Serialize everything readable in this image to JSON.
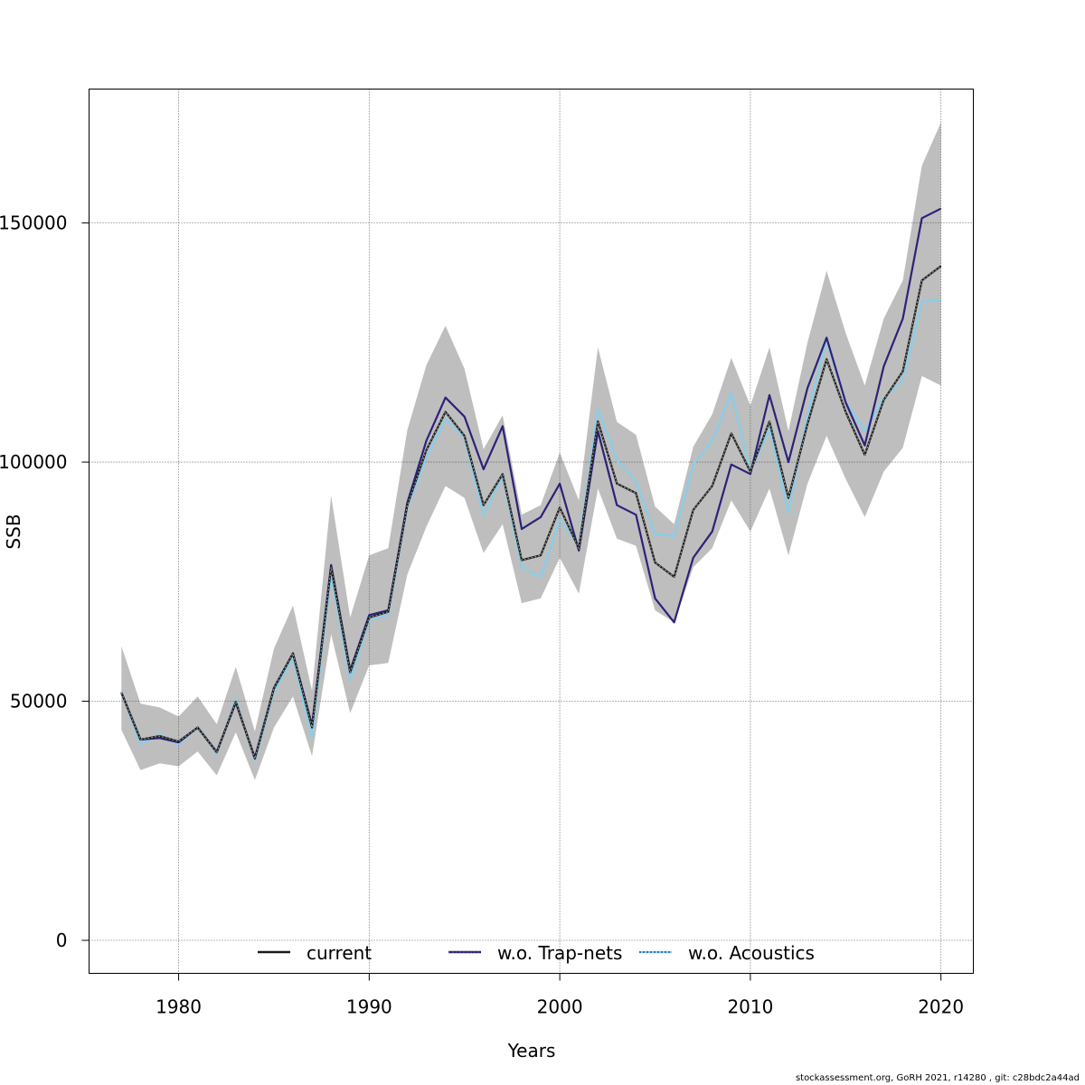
{
  "chart_data": {
    "type": "line",
    "xlabel": "Years",
    "ylabel": "SSB",
    "xlim": [
      1975.3,
      2021.7
    ],
    "ylim": [
      -6900,
      178000
    ],
    "xticks": [
      1980,
      1990,
      2000,
      2010,
      2020
    ],
    "yticks": [
      0,
      50000,
      100000,
      150000
    ],
    "ytick_labels": [
      "0",
      "50000",
      "100000",
      "150000"
    ],
    "grid": true,
    "legend_placement": "bottom",
    "x": [
      1977,
      1978,
      1979,
      1980,
      1981,
      1982,
      1983,
      1984,
      1985,
      1986,
      1987,
      1988,
      1989,
      1990,
      1991,
      1992,
      1993,
      1994,
      1995,
      1996,
      1997,
      1998,
      1999,
      2000,
      2001,
      2002,
      2003,
      2004,
      2005,
      2006,
      2007,
      2008,
      2009,
      2010,
      2011,
      2012,
      2013,
      2014,
      2015,
      2016,
      2017,
      2018,
      2019,
      2020
    ],
    "band": {
      "color": "#bebebe",
      "lower": [
        44000,
        35600,
        37000,
        36400,
        39500,
        34500,
        43500,
        33500,
        44500,
        51000,
        38500,
        64000,
        47500,
        57500,
        58000,
        76500,
        86500,
        95000,
        92500,
        81000,
        87000,
        70500,
        71500,
        80000,
        72500,
        94500,
        84000,
        82500,
        69000,
        66500,
        78000,
        82000,
        92000,
        85500,
        94500,
        80500,
        95500,
        105500,
        96500,
        88500,
        98000,
        103000,
        118000,
        116000
      ],
      "upper": [
        61500,
        49500,
        48700,
        46800,
        51000,
        45200,
        57200,
        43700,
        61000,
        70000,
        52200,
        93000,
        67500,
        80500,
        82000,
        106700,
        120300,
        128500,
        119500,
        102700,
        109800,
        89000,
        91000,
        102000,
        92000,
        124000,
        108400,
        105700,
        90700,
        87000,
        103200,
        110000,
        121800,
        111800,
        124000,
        106500,
        125000,
        140000,
        127000,
        116000,
        130000,
        138000,
        162000,
        171000
      ]
    },
    "series": [
      {
        "name": "current",
        "color": "#1a1a1a",
        "dash": "dotted-overlay",
        "values": [
          51800,
          42000,
          42700,
          41600,
          44500,
          39300,
          49900,
          38000,
          52700,
          60000,
          44500,
          78000,
          56000,
          67500,
          68700,
          91000,
          102500,
          110500,
          105500,
          91000,
          97500,
          79500,
          80500,
          90500,
          82000,
          108500,
          95500,
          93500,
          79000,
          76000,
          90000,
          95000,
          106000,
          98000,
          108500,
          92500,
          108000,
          121500,
          110500,
          101500,
          113000,
          119000,
          138000,
          141000
        ]
      },
      {
        "name": "w.o. Trap-nets",
        "color": "#2b2278",
        "dash": "solid",
        "values": [
          51800,
          42000,
          42300,
          41400,
          44500,
          39400,
          49700,
          38200,
          52800,
          60000,
          45000,
          78500,
          56500,
          68000,
          69000,
          91500,
          104500,
          113500,
          109500,
          98500,
          107500,
          86000,
          88500,
          95500,
          81500,
          106500,
          91000,
          89000,
          71500,
          66500,
          80000,
          85500,
          99500,
          97500,
          114000,
          100000,
          115500,
          126000,
          112500,
          103500,
          120000,
          130000,
          151000,
          153000
        ]
      },
      {
        "name": "w.o. Acoustics",
        "color": "#87ceeb",
        "dash": "solid",
        "values": [
          52000,
          41000,
          43000,
          41000,
          44500,
          39000,
          50500,
          37500,
          52000,
          59000,
          42500,
          76500,
          54500,
          67000,
          68000,
          90500,
          101000,
          109000,
          105000,
          89000,
          97000,
          78000,
          76000,
          88000,
          82500,
          111000,
          100500,
          96000,
          85000,
          84500,
          99500,
          104500,
          114500,
          98000,
          107000,
          89500,
          110000,
          125500,
          112500,
          106500,
          113500,
          117000,
          133500,
          134000
        ]
      }
    ]
  },
  "legend": {
    "items": [
      {
        "label": "current"
      },
      {
        "label": "w.o. Trap-nets"
      },
      {
        "label": "w.o. Acoustics"
      }
    ]
  },
  "footer": {
    "text": "stockassessment.org, GoRH  2021, r14280 , git: c28bdc2a44ad"
  }
}
